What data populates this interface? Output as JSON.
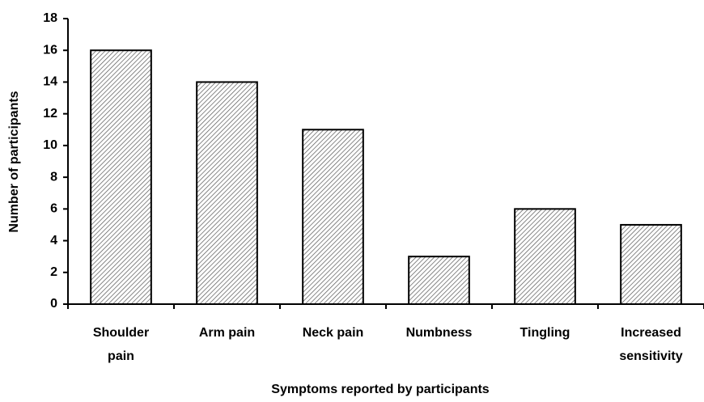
{
  "chart_data": {
    "type": "bar",
    "categories": [
      "Shoulder pain",
      "Arm pain",
      "Neck pain",
      "Numbness",
      "Tingling",
      "Increased sensitivity"
    ],
    "values": [
      16,
      14,
      11,
      3,
      6,
      5
    ],
    "ylim": [
      0,
      18
    ],
    "yticks": [
      0,
      2,
      4,
      6,
      8,
      10,
      12,
      14,
      16,
      18
    ],
    "x_label": "Symptoms reported by participants",
    "y_label": "Number of participants"
  }
}
